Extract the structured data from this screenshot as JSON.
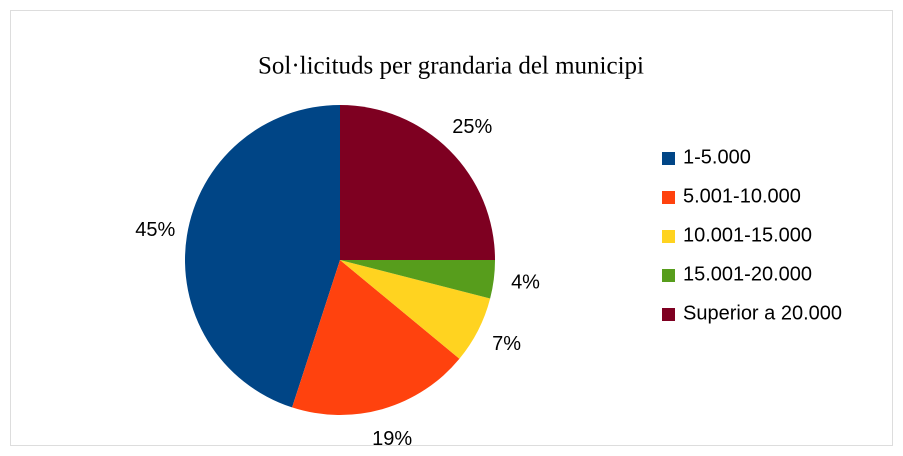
{
  "chart_data": {
    "type": "pie",
    "title": "Sol·licituds per grandaria del municipi",
    "categories": [
      "1-5.000",
      "5.001-10.000",
      "10.001-15.000",
      "15.001-20.000",
      "Superior a 20.000"
    ],
    "values": [
      45,
      19,
      7,
      4,
      25
    ],
    "value_labels": [
      "45%",
      "19%",
      "7%",
      "4%",
      "25%"
    ],
    "colors": [
      "#004586",
      "#ff420e",
      "#ffd320",
      "#579d1c",
      "#7e0021"
    ],
    "legend": "right"
  }
}
